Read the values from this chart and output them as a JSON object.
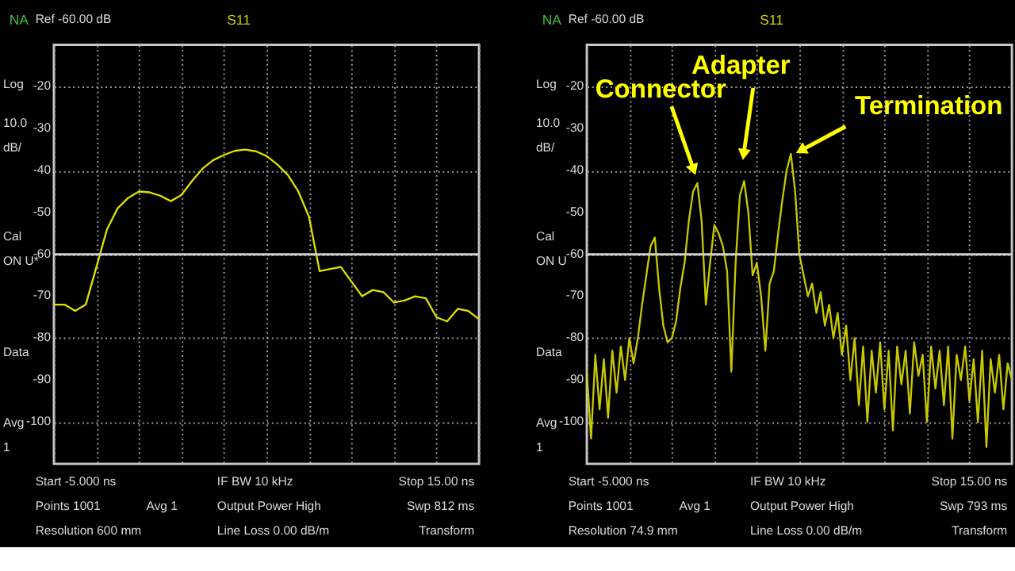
{
  "chart_data": [
    {
      "type": "line",
      "title": "S11",
      "categories": [
        null,
        null,
        null,
        null,
        null,
        null,
        null,
        null,
        null,
        null,
        null,
        null,
        null,
        null,
        null,
        null,
        null,
        null,
        null,
        null,
        null,
        null,
        null,
        null,
        null,
        null,
        null,
        null,
        null,
        null,
        null,
        null,
        null,
        null,
        null,
        null,
        null,
        null,
        null,
        null,
        null
      ],
      "series": [
        {
          "color": "#e0e000",
          "values": [
            -72,
            -72,
            -73.5,
            -72,
            -63,
            -54,
            -49,
            -46.5,
            -45,
            -45.2,
            -46,
            -47.3,
            -45.8,
            -42.5,
            -39.5,
            -37.5,
            -36.3,
            -35.3,
            -35,
            -35.4,
            -36.5,
            -38.5,
            -41,
            -45,
            -51,
            -64,
            -63.5,
            -63,
            -66.5,
            -70,
            -68.5,
            -69,
            -71.5,
            -71,
            -70,
            -70.5,
            -75,
            -76,
            -73,
            -73.5,
            -75.5
          ]
        }
      ],
      "ylim": [
        -110,
        -10
      ],
      "yticks": [
        -20,
        -30,
        -40,
        -50,
        -60,
        -70,
        -80,
        -90,
        -100
      ],
      "tick_labels": "y",
      "grid": true,
      "ref_lines": [
        {
          "axis": "y",
          "value": -60,
          "color": "#d0d0d0"
        }
      ],
      "annotations": [
        "NA",
        "Ref -60.00 dB",
        "Log",
        "10.0",
        "dB/",
        "Cal",
        "ON U*",
        "Data",
        "Avg",
        "1",
        "Start -5.000 ns",
        "IF BW 10 kHz",
        "Stop 15.00 ns",
        "Points 1001",
        "Avg  1",
        "Output Power High",
        "Swp 812 ms",
        "Resolution 600 mm",
        "Line Loss 0.00  dB/m",
        "Transform"
      ]
    },
    {
      "type": "line",
      "title": "S11",
      "categories": [
        null,
        null,
        null,
        null,
        null,
        null,
        null,
        null,
        null,
        null,
        null,
        null,
        null,
        null,
        null,
        null,
        null,
        null,
        null,
        null,
        null,
        null,
        null,
        null,
        null,
        null,
        null,
        null,
        null,
        null,
        null,
        null,
        null,
        null,
        null,
        null,
        null,
        null,
        null,
        null,
        null,
        null,
        null,
        null,
        null,
        null,
        null,
        null,
        null,
        null,
        null,
        null,
        null,
        null,
        null,
        null,
        null,
        null,
        null,
        null,
        null,
        null,
        null,
        null,
        null,
        null,
        null,
        null,
        null,
        null,
        null,
        null,
        null,
        null,
        null,
        null,
        null,
        null,
        null,
        null,
        null,
        null,
        null,
        null,
        null,
        null,
        null,
        null,
        null,
        null,
        null,
        null,
        null,
        null,
        null,
        null,
        null,
        null,
        null,
        null,
        null
      ],
      "series": [
        {
          "color": "#c8c800",
          "values": [
            -88,
            -104,
            -84,
            -97,
            -85,
            -99,
            -83,
            -93,
            -82,
            -90,
            -80,
            -86,
            -80,
            -72,
            -65,
            -58,
            -56,
            -68,
            -77,
            -81,
            -80,
            -76,
            -68,
            -62,
            -52,
            -45,
            -43,
            -52,
            -72,
            -62,
            -53,
            -55,
            -58,
            -64,
            -88,
            -62,
            -46,
            -42.5,
            -50,
            -65,
            -62,
            -70,
            -83,
            -67,
            -64,
            -55,
            -47,
            -40,
            -36,
            -45,
            -60,
            -65,
            -70,
            -67,
            -74,
            -69,
            -77,
            -72,
            -80,
            -74,
            -84,
            -77,
            -90,
            -80,
            -96,
            -82,
            -100,
            -83,
            -93,
            -81,
            -97,
            -83,
            -102,
            -82,
            -91,
            -83,
            -98,
            -81,
            -89,
            -84,
            -100,
            -82,
            -92,
            -83,
            -96,
            -82,
            -104,
            -84,
            -90,
            -82,
            -95,
            -85,
            -100,
            -83,
            -106,
            -85,
            -93,
            -84,
            -97,
            -86,
            -90
          ]
        }
      ],
      "ylim": [
        -110,
        -10
      ],
      "yticks": [
        -20,
        -30,
        -40,
        -50,
        -60,
        -70,
        -80,
        -90,
        -100
      ],
      "tick_labels": "y",
      "grid": true,
      "ref_lines": [
        {
          "axis": "y",
          "value": -60,
          "color": "#d0d0d0"
        }
      ],
      "annotations": [
        "NA",
        "Ref -60.00 dB",
        "Log",
        "10.0",
        "dB/",
        "Cal",
        "ON U",
        "Data",
        "Avg",
        "1",
        "Start -5.000 ns",
        "IF BW 10 kHz",
        "Stop 15.00 ns",
        "Points 1001",
        "Avg  1",
        "Output Power High",
        "Swp 793 ms",
        "Resolution 74.9 mm",
        "Line Loss 0.00  dB/m",
        "Transform",
        "Connector",
        "Adapter",
        "Termination"
      ]
    }
  ]
}
